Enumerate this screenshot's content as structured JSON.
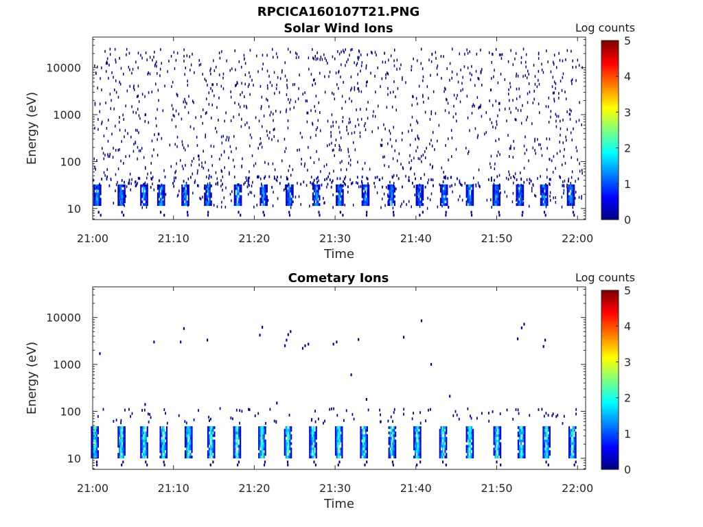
{
  "figure_title": "RPCICA160107T21.PNG",
  "colors": {
    "colormap": [
      "#00007f",
      "#0000ff",
      "#007fff",
      "#00ffff",
      "#7fff7f",
      "#ffff00",
      "#ff7f00",
      "#ff0000",
      "#7f0000"
    ],
    "axis": "#262626",
    "background": "#ffffff"
  },
  "chart_data": [
    {
      "type": "heatmap",
      "title": "Solar Wind Ions",
      "xlabel": "Time",
      "ylabel": "Energy (eV)",
      "x_ticks": [
        "21:00",
        "21:10",
        "21:20",
        "21:30",
        "21:40",
        "21:50",
        "22:00"
      ],
      "xlim_minutes": [
        0,
        61
      ],
      "y_ticks": [
        10,
        100,
        1000,
        10000
      ],
      "y_tick_labels": [
        "10",
        "100",
        "1000",
        "10000"
      ],
      "ylim": [
        5.8,
        45000
      ],
      "y_scale": "log",
      "colorbar": {
        "label": "Log counts",
        "range": [
          0,
          5
        ],
        "ticks": [
          "0",
          "1",
          "2",
          "3",
          "4",
          "5"
        ]
      },
      "pulse_minutes": [
        0.4,
        3.4,
        6.2,
        8.3,
        11.3,
        14.1,
        17.8,
        21.0,
        24.2,
        27.5,
        30.4,
        33.6,
        36.8,
        40.3,
        43.3,
        46.5,
        49.8,
        52.7,
        55.7,
        59.0
      ],
      "pulse_peak_log_counts": 1.9,
      "pulse_energy_range_eV": [
        12,
        34
      ],
      "background_energy_range_eV": [
        10,
        25000
      ],
      "background_log_counts": 0.2,
      "grid": false,
      "colorbar_position": "right"
    },
    {
      "type": "heatmap",
      "title": "Cometary Ions",
      "xlabel": "Time",
      "ylabel": "Energy (eV)",
      "x_ticks": [
        "21:00",
        "21:10",
        "21:20",
        "21:30",
        "21:40",
        "21:50",
        "22:00"
      ],
      "xlim_minutes": [
        0,
        61
      ],
      "y_ticks": [
        10,
        100,
        1000,
        10000
      ],
      "y_tick_labels": [
        "10",
        "100",
        "1000",
        "10000"
      ],
      "ylim": [
        5.8,
        45000
      ],
      "y_scale": "log",
      "colorbar": {
        "label": "Log counts",
        "range": [
          0,
          5
        ],
        "ticks": [
          "0",
          "1",
          "2",
          "3",
          "4",
          "5"
        ]
      },
      "pulse_minutes": [
        0.1,
        3.4,
        6.2,
        8.6,
        11.7,
        14.5,
        17.7,
        20.8,
        24.0,
        27.1,
        30.3,
        33.4,
        36.9,
        40.0,
        43.2,
        46.5,
        49.9,
        52.9,
        56.0,
        59.2
      ],
      "pulse_peak_log_counts": 2.8,
      "pulse_energy_range_eV": [
        10,
        45
      ],
      "sparse_events": [
        {
          "t": 0.8,
          "e": 1700
        },
        {
          "t": 7.5,
          "e": 3000
        },
        {
          "t": 10.8,
          "e": 3000
        },
        {
          "t": 11.2,
          "e": 5800
        },
        {
          "t": 14.1,
          "e": 3300
        },
        {
          "t": 20.6,
          "e": 4200
        },
        {
          "t": 20.9,
          "e": 6200
        },
        {
          "t": 23.7,
          "e": 2500
        },
        {
          "t": 23.9,
          "e": 3300
        },
        {
          "t": 24.1,
          "e": 4300
        },
        {
          "t": 24.4,
          "e": 5000
        },
        {
          "t": 25.9,
          "e": 2200
        },
        {
          "t": 26.2,
          "e": 2500
        },
        {
          "t": 26.6,
          "e": 2700
        },
        {
          "t": 29.7,
          "e": 2700
        },
        {
          "t": 30.1,
          "e": 3000
        },
        {
          "t": 32.8,
          "e": 3400
        },
        {
          "t": 31.9,
          "e": 600
        },
        {
          "t": 38.4,
          "e": 3800
        },
        {
          "t": 40.6,
          "e": 8500
        },
        {
          "t": 41.8,
          "e": 1000
        },
        {
          "t": 52.5,
          "e": 3500
        },
        {
          "t": 53.0,
          "e": 6000
        },
        {
          "t": 53.3,
          "e": 7200
        },
        {
          "t": 55.7,
          "e": 2400
        },
        {
          "t": 55.9,
          "e": 3300
        },
        {
          "t": 6.4,
          "e": 140
        },
        {
          "t": 33.8,
          "e": 180
        },
        {
          "t": 44.1,
          "e": 210
        },
        {
          "t": 22.7,
          "e": 150
        }
      ],
      "grid": false,
      "colorbar_position": "right"
    }
  ]
}
